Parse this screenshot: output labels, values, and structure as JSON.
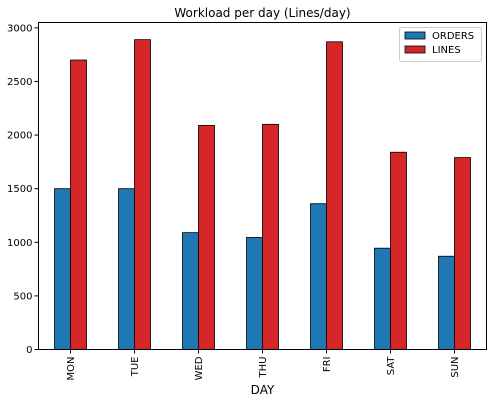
{
  "chart_data": {
    "type": "bar",
    "title": "Workload per day (Lines/day)",
    "xlabel": "DAY",
    "ylabel": "",
    "categories": [
      "MON",
      "TUE",
      "WED",
      "THU",
      "FRI",
      "SAT",
      "SUN"
    ],
    "series": [
      {
        "name": "ORDERS",
        "color": "#1f77b4",
        "values": [
          1500,
          1500,
          1090,
          1045,
          1360,
          945,
          870
        ]
      },
      {
        "name": "LINES",
        "color": "#d62728",
        "values": [
          2700,
          2890,
          2090,
          2100,
          2870,
          1840,
          1790
        ]
      }
    ],
    "ylim": [
      0,
      3050
    ],
    "yticks": [
      0,
      500,
      1000,
      1500,
      2000,
      2500,
      3000
    ],
    "legend_position": "top-right",
    "grid": false
  }
}
